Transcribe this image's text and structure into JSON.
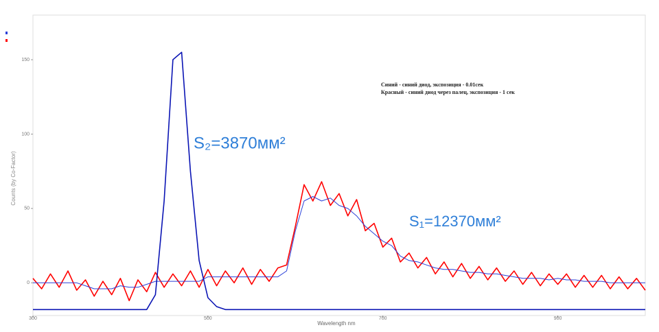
{
  "chart_data": {
    "type": "line",
    "x_label": "Wavelength nm",
    "y_label": "Counts (by Co-Factor)",
    "annotations": [
      "Синий - синий диод, экспозиция - 0.01сек",
      "Красный - синий диод через палец, экспозиция - 1 сек",
      "S₂=3870мм²",
      "S₁=12370мм²"
    ],
    "x": [
      300,
      310,
      320,
      330,
      340,
      350,
      360,
      370,
      380,
      390,
      400,
      410,
      420,
      430,
      440,
      450,
      460,
      470,
      480,
      490,
      500,
      510,
      520,
      530,
      540,
      550,
      560,
      570,
      580,
      590,
      600,
      610,
      620,
      630,
      640,
      650,
      660,
      670,
      680,
      690,
      700,
      710,
      720,
      730,
      740,
      750,
      760,
      770,
      780,
      790,
      800,
      810,
      820,
      830,
      840,
      850,
      860,
      870,
      880,
      890,
      900,
      910,
      920,
      930,
      940,
      950,
      960,
      970,
      980,
      990,
      1000
    ],
    "series": [
      {
        "color": "#ff0000",
        "values": [
          3,
          -4,
          6,
          -3,
          8,
          -5,
          2,
          -9,
          1,
          -8,
          3,
          -12,
          2,
          -6,
          7,
          -3,
          6,
          -2,
          8,
          -3,
          9,
          -2,
          8,
          0,
          10,
          -1,
          9,
          1,
          10,
          12,
          38,
          66,
          55,
          68,
          52,
          60,
          45,
          56,
          35,
          40,
          24,
          30,
          14,
          20,
          10,
          17,
          6,
          14,
          4,
          13,
          3,
          11,
          2,
          10,
          1,
          8,
          -1,
          7,
          -2,
          6,
          -1,
          6,
          -3,
          5,
          -3,
          5,
          -4,
          4,
          -4,
          3,
          -5
        ]
      },
      {
        "color": "#2a3fd8",
        "values": [
          0,
          0,
          0,
          0,
          0,
          0,
          -2,
          -4,
          -4,
          -4,
          -2,
          -3,
          -3,
          -1,
          1,
          1,
          1,
          1,
          1,
          1,
          4,
          4,
          4,
          4,
          4,
          4,
          4,
          4,
          4,
          8,
          35,
          55,
          58,
          55,
          57,
          52,
          50,
          45,
          38,
          33,
          28,
          25,
          18,
          15,
          14,
          12,
          10,
          9,
          9,
          8,
          7,
          7,
          6,
          6,
          5,
          4,
          3,
          3,
          3,
          2,
          3,
          2,
          2,
          1,
          1,
          1,
          0,
          0,
          0,
          0,
          0
        ]
      },
      {
        "color": "#0a14b4",
        "values": [
          -18,
          -18,
          -18,
          -18,
          -18,
          -18,
          -18,
          -18,
          -18,
          -18,
          -18,
          -18,
          -18,
          -18,
          -8,
          55,
          150,
          155,
          75,
          15,
          -10,
          -16,
          -18,
          -18,
          -18,
          -18,
          -18,
          -18,
          -18,
          -18,
          -18,
          -18,
          -18,
          -18,
          -18,
          -18,
          -18,
          -18,
          -18,
          -18,
          -18,
          -18,
          -18,
          -18,
          -18,
          -18,
          -18,
          -18,
          -18,
          -18,
          -18,
          -18,
          -18,
          -18,
          -18,
          -18,
          -18,
          -18,
          -18,
          -18,
          -18,
          -18,
          -18,
          -18,
          -18,
          -18,
          -18,
          -18,
          -18,
          -18,
          -18
        ]
      }
    ],
    "xlim": [
      300,
      1000
    ],
    "xticks": [
      300,
      500,
      700,
      900
    ],
    "ylim": [
      -22,
      180
    ],
    "yticks": [
      0,
      50,
      100,
      150
    ],
    "grid": false
  }
}
